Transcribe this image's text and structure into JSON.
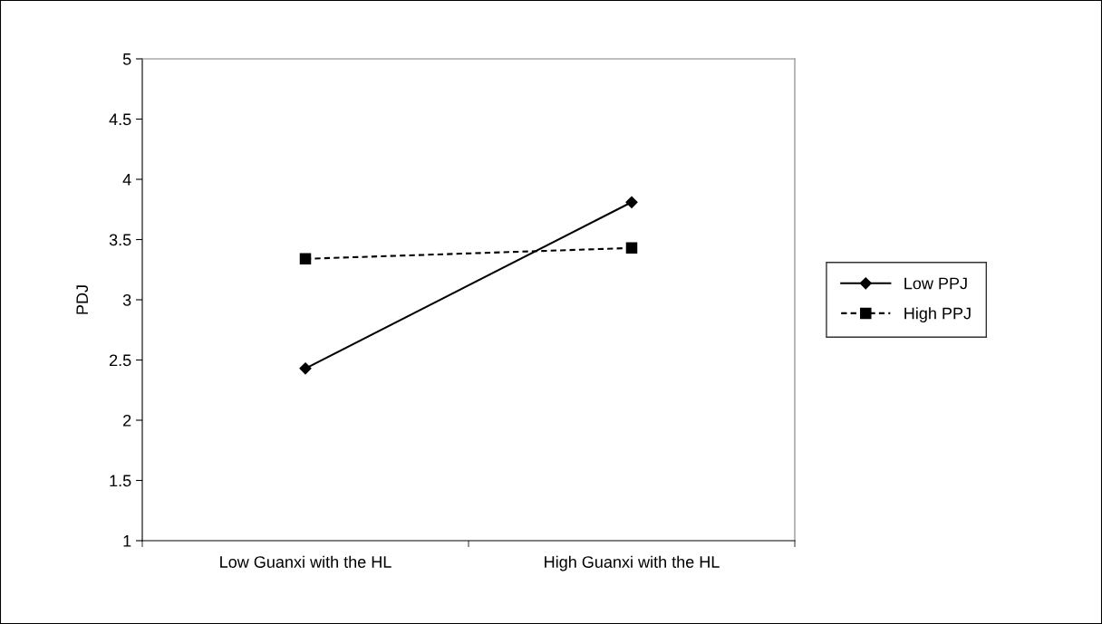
{
  "chart_data": {
    "type": "line",
    "ylabel": "PDJ",
    "categories": [
      "Low Guanxi with the HL",
      "High Guanxi with the HL"
    ],
    "series": [
      {
        "name": "Low PPJ",
        "color": "#000000",
        "values": [
          2.43,
          3.81
        ],
        "marker": "diamond",
        "line_style": "solid"
      },
      {
        "name": "High PPJ",
        "color": "#000000",
        "values": [
          3.34,
          3.43
        ],
        "marker": "square",
        "line_style": "dashed"
      }
    ],
    "ylim": [
      1,
      5
    ],
    "yticks": [
      1,
      1.5,
      2,
      2.5,
      3,
      3.5,
      4,
      4.5,
      5
    ],
    "grid": false,
    "legend": "right"
  }
}
